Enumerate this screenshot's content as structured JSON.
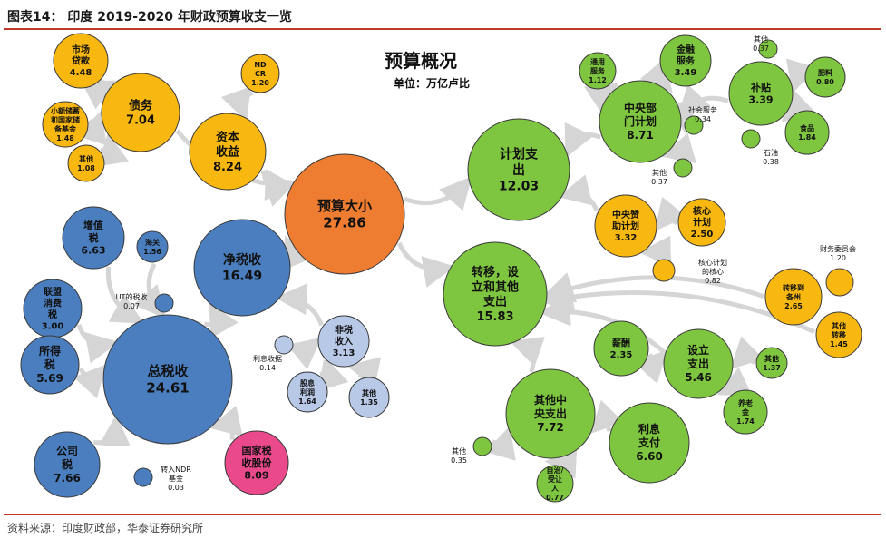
{
  "header": {
    "title": "图表14： 印度 2019-2020 年财政预算收支一览"
  },
  "footer": {
    "source": "资料来源：印度财政部，华泰证券研究所"
  },
  "diagram": {
    "title": "预算概况",
    "unit": "单位：万亿卢比",
    "colors": {
      "orange": "#ef7d31",
      "blue": "#4a7ebf",
      "green": "#7ec63f",
      "gold": "#f9b80f",
      "lightblue": "#b8c9e8",
      "pink": "#ea4a8c"
    },
    "nodes": [
      {
        "id": "budget",
        "label": [
          "预算大小"
        ],
        "value": "27.86",
        "color": "orange"
      },
      {
        "id": "netTax",
        "label": [
          "净税收"
        ],
        "value": "16.49",
        "color": "blue"
      },
      {
        "id": "totalTax",
        "label": [
          "总税收"
        ],
        "value": "24.61",
        "color": "blue"
      },
      {
        "id": "vat",
        "label": [
          "增值",
          "税"
        ],
        "value": "6.63",
        "color": "blue"
      },
      {
        "id": "customs",
        "label": [
          "海关"
        ],
        "value": "1.56",
        "color": "blue"
      },
      {
        "id": "unionExcise",
        "label": [
          "联盟",
          "消费",
          "税"
        ],
        "value": "3.00",
        "color": "blue"
      },
      {
        "id": "income",
        "label": [
          "所得",
          "税"
        ],
        "value": "5.69",
        "color": "blue"
      },
      {
        "id": "corp",
        "label": [
          "公司",
          "税"
        ],
        "value": "7.66",
        "color": "blue"
      },
      {
        "id": "ut",
        "label": [
          "UT的税收"
        ],
        "value": "0.07",
        "color": "blue"
      },
      {
        "id": "ndrTransfer",
        "label": [
          "转入NDR",
          "基金"
        ],
        "value": "0.03",
        "color": "blue"
      },
      {
        "id": "stateShare",
        "label": [
          "国家税",
          "收股份"
        ],
        "value": "8.09",
        "color": "pink"
      },
      {
        "id": "nonTax",
        "label": [
          "非税",
          "收入"
        ],
        "value": "3.13",
        "color": "lightblue"
      },
      {
        "id": "interestRec",
        "label": [
          "利息收据"
        ],
        "value": "0.14",
        "color": "lightblue"
      },
      {
        "id": "dividend",
        "label": [
          "股息",
          "利润"
        ],
        "value": "1.64",
        "color": "lightblue"
      },
      {
        "id": "otherNT",
        "label": [
          "其他"
        ],
        "value": "1.35",
        "color": "lightblue"
      },
      {
        "id": "debt",
        "label": [
          "债务"
        ],
        "value": "7.04",
        "color": "gold"
      },
      {
        "id": "marketLoans",
        "label": [
          "市场",
          "贷款"
        ],
        "value": "4.48",
        "color": "gold"
      },
      {
        "id": "smallSavings",
        "label": [
          "小额储蓄",
          "和国家储",
          "备基金"
        ],
        "value": "1.48",
        "color": "gold"
      },
      {
        "id": "otherDebt",
        "label": [
          "其他"
        ],
        "value": "1.08",
        "color": "gold"
      },
      {
        "id": "capital",
        "label": [
          "资本",
          "收益"
        ],
        "value": "8.24",
        "color": "gold"
      },
      {
        "id": "ndcr",
        "label": [
          "ND",
          "CR"
        ],
        "value": "1.20",
        "color": "gold"
      },
      {
        "id": "planned",
        "label": [
          "计划支",
          "出"
        ],
        "value": "12.03",
        "color": "green"
      },
      {
        "id": "central",
        "label": [
          "中央部",
          "门计划"
        ],
        "value": "8.71",
        "color": "green"
      },
      {
        "id": "general",
        "label": [
          "通用",
          "服务"
        ],
        "value": "1.12",
        "color": "green"
      },
      {
        "id": "financial",
        "label": [
          "金融",
          "服务"
        ],
        "value": "3.49",
        "color": "green"
      },
      {
        "id": "social",
        "label": [
          "社会服务"
        ],
        "value": "0.34",
        "color": "green"
      },
      {
        "id": "otherCentral",
        "label": [
          "其他"
        ],
        "value": "0.37",
        "color": "green"
      },
      {
        "id": "subsidy",
        "label": [
          "补贴"
        ],
        "value": "3.39",
        "color": "green"
      },
      {
        "id": "otherSub",
        "label": [
          "其他"
        ],
        "value": "0.37",
        "color": "green"
      },
      {
        "id": "fertilizer",
        "label": [
          "肥料"
        ],
        "value": "0.80",
        "color": "green"
      },
      {
        "id": "food",
        "label": [
          "食品"
        ],
        "value": "1.84",
        "color": "green"
      },
      {
        "id": "petroleum",
        "label": [
          "石油"
        ],
        "value": "0.38",
        "color": "green"
      },
      {
        "id": "centralSponsored",
        "label": [
          "中央赞",
          "助计划"
        ],
        "value": "3.32",
        "color": "gold"
      },
      {
        "id": "core",
        "label": [
          "核心",
          "计划"
        ],
        "value": "2.50",
        "color": "gold"
      },
      {
        "id": "coreOfCore",
        "label": [
          "核心计划",
          "的核心"
        ],
        "value": "0.82",
        "color": "gold"
      },
      {
        "id": "transfers",
        "label": [
          "转移，设",
          "立和其他",
          "支出"
        ],
        "value": "15.83",
        "color": "green"
      },
      {
        "id": "financeCommission",
        "label": [
          "财务委员会"
        ],
        "value": "1.20",
        "color": "gold"
      },
      {
        "id": "transferState",
        "label": [
          "转移到",
          "各州"
        ],
        "value": "2.65",
        "color": "gold"
      },
      {
        "id": "otherTransfer",
        "label": [
          "其他",
          "转移"
        ],
        "value": "1.45",
        "color": "gold"
      },
      {
        "id": "salary",
        "label": [
          "薪酬"
        ],
        "value": "2.35",
        "color": "green"
      },
      {
        "id": "establishment",
        "label": [
          "设立",
          "支出"
        ],
        "value": "5.46",
        "color": "green"
      },
      {
        "id": "otherEst",
        "label": [
          "其他"
        ],
        "value": "1.37",
        "color": "green"
      },
      {
        "id": "pension",
        "label": [
          "养老",
          "金"
        ],
        "value": "1.74",
        "color": "green"
      },
      {
        "id": "otherCentralExp",
        "label": [
          "其他中",
          "央支出"
        ],
        "value": "7.72",
        "color": "green"
      },
      {
        "id": "interestPay",
        "label": [
          "利息",
          "支付"
        ],
        "value": "6.60",
        "color": "green"
      },
      {
        "id": "otherSmall",
        "label": [
          "其他"
        ],
        "value": "0.35",
        "color": "green"
      },
      {
        "id": "autonomous",
        "label": [
          "自治/",
          "受让",
          "人"
        ],
        "value": "0.77",
        "color": "green"
      }
    ],
    "edges": [
      [
        "debt",
        "budget"
      ],
      [
        "capital",
        "budget"
      ],
      [
        "netTax",
        "budget"
      ],
      [
        "budget",
        "planned"
      ],
      [
        "budget",
        "transfers"
      ],
      [
        "marketLoans",
        "debt"
      ],
      [
        "smallSavings",
        "debt"
      ],
      [
        "otherDebt",
        "debt"
      ],
      [
        "ndcr",
        "capital"
      ],
      [
        "totalTax",
        "netTax"
      ],
      [
        "nonTax",
        "netTax"
      ],
      [
        "stateShare",
        "totalTax"
      ],
      [
        "vat",
        "totalTax"
      ],
      [
        "customs",
        "totalTax"
      ],
      [
        "unionExcise",
        "totalTax"
      ],
      [
        "income",
        "totalTax"
      ],
      [
        "corp",
        "totalTax"
      ],
      [
        "interestRec",
        "nonTax"
      ],
      [
        "dividend",
        "nonTax"
      ],
      [
        "otherNT",
        "nonTax"
      ],
      [
        "central",
        "planned"
      ],
      [
        "centralSponsored",
        "planned"
      ],
      [
        "general",
        "central"
      ],
      [
        "financial",
        "central"
      ],
      [
        "social",
        "central"
      ],
      [
        "otherCentral",
        "central"
      ],
      [
        "subsidy",
        "central"
      ],
      [
        "fertilizer",
        "subsidy"
      ],
      [
        "food",
        "subsidy"
      ],
      [
        "core",
        "centralSponsored"
      ],
      [
        "coreOfCore",
        "centralSponsored"
      ],
      [
        "transferState",
        "transfers"
      ],
      [
        "otherTransfer",
        "transfers"
      ],
      [
        "establishment",
        "transfers"
      ],
      [
        "otherCentralExp",
        "transfers"
      ],
      [
        "salary",
        "establishment"
      ],
      [
        "otherEst",
        "establishment"
      ],
      [
        "pension",
        "establishment"
      ],
      [
        "interestPay",
        "otherCentralExp"
      ],
      [
        "otherSmall",
        "otherCentralExp"
      ],
      [
        "autonomous",
        "otherCentralExp"
      ]
    ]
  }
}
